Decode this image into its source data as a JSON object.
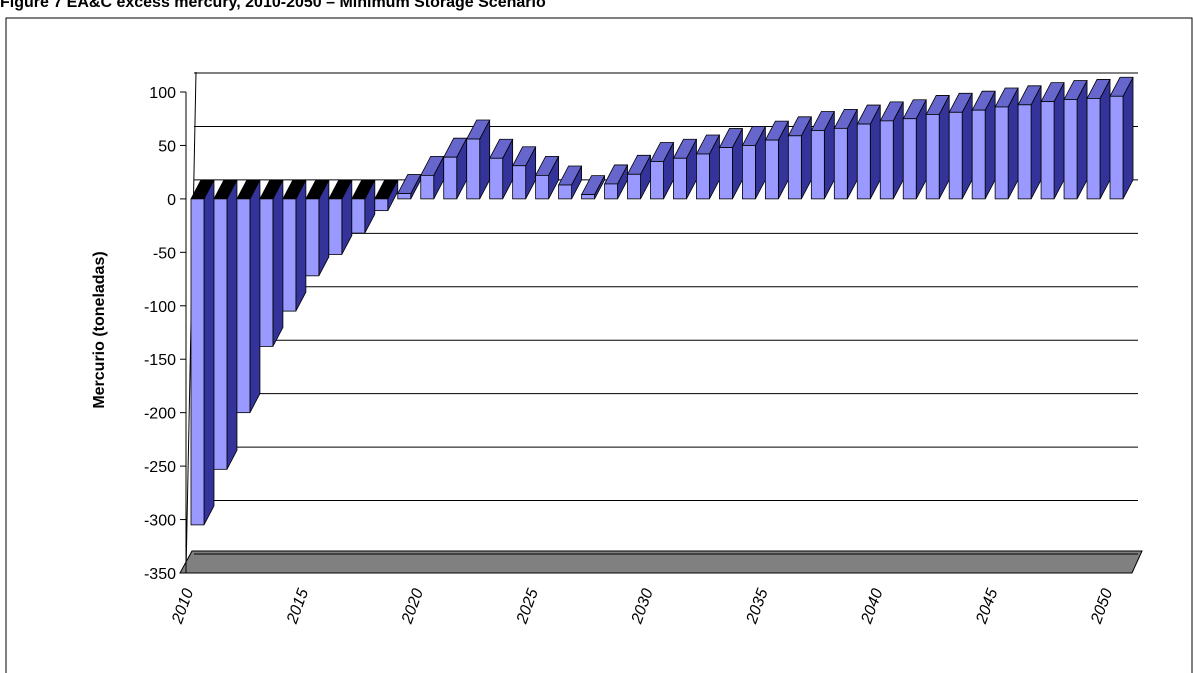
{
  "chart_data": {
    "type": "bar",
    "title": "Figure 7   EA&C excess mercury, 2010-2050 – Minimum Storage Scenario",
    "y_label": "Mercurio (toneladas)",
    "categories": [
      "2010",
      null,
      null,
      null,
      null,
      "2015",
      null,
      null,
      null,
      null,
      "2020",
      null,
      null,
      null,
      null,
      "2025",
      null,
      null,
      null,
      null,
      "2030",
      null,
      null,
      null,
      null,
      "2035",
      null,
      null,
      null,
      null,
      "2040",
      null,
      null,
      null,
      null,
      "2045",
      null,
      null,
      null,
      null,
      "2050"
    ],
    "values": [
      -305,
      -253,
      -200,
      -138,
      -105,
      -72,
      -52,
      -32,
      -11,
      5,
      22,
      39,
      56,
      38,
      31,
      22,
      13,
      4,
      14,
      23,
      35,
      38,
      42,
      48,
      50,
      55,
      59,
      64,
      66,
      70,
      73,
      75,
      79,
      81,
      83,
      86,
      88,
      91,
      93,
      94,
      96
    ],
    "color": "#9999ff",
    "ylim": [
      -350,
      100
    ],
    "yticks": [
      -350,
      -300,
      -250,
      -200,
      -150,
      -100,
      -50,
      0,
      50,
      100
    ],
    "grid": true
  }
}
